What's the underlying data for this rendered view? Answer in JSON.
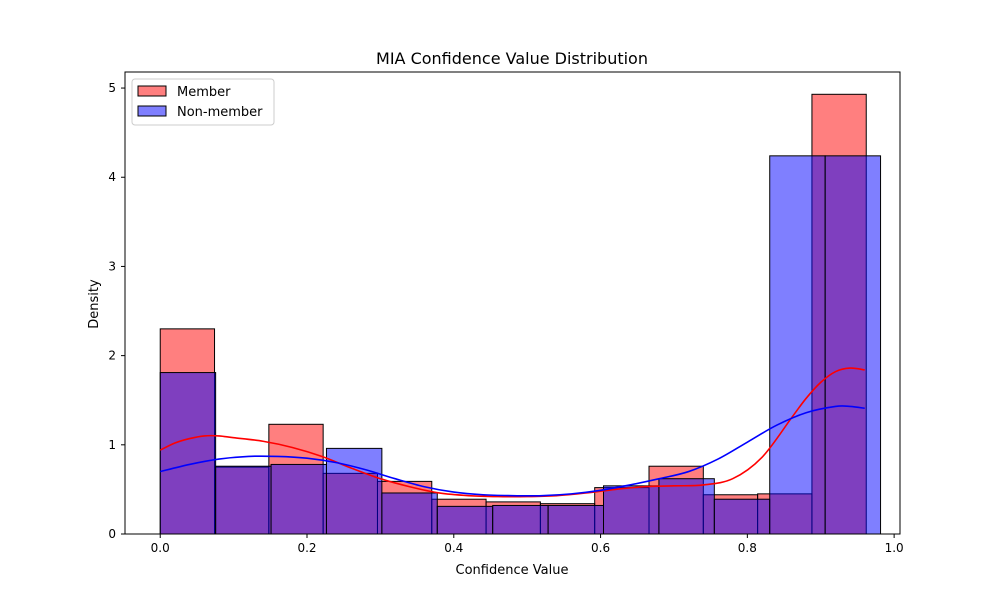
{
  "chart_data": {
    "type": "histogram",
    "title": "MIA Confidence Value Distribution",
    "xlabel": "Confidence Value",
    "ylabel": "Density",
    "xlim": [
      -0.048,
      1.008
    ],
    "ylim": [
      0,
      5.18
    ],
    "xticks": [
      0.0,
      0.2,
      0.4,
      0.6,
      0.8,
      1.0
    ],
    "xtick_labels": [
      "0.0",
      "0.2",
      "0.4",
      "0.6",
      "0.8",
      "1.0"
    ],
    "yticks": [
      0,
      1,
      2,
      3,
      4,
      5
    ],
    "ytick_labels": [
      "0",
      "1",
      "2",
      "3",
      "4",
      "5"
    ],
    "grid": false,
    "legend_position": "upper-left",
    "series": [
      {
        "name": "Member",
        "color": "#ff0000",
        "fill_alpha": 0.5,
        "bin_edges": [
          0.0,
          0.074,
          0.148,
          0.222,
          0.296,
          0.37,
          0.444,
          0.518,
          0.592,
          0.666,
          0.74,
          0.814,
          0.888,
          0.962
        ],
        "densities": [
          2.3,
          0.75,
          1.23,
          0.68,
          0.59,
          0.39,
          0.36,
          0.34,
          0.52,
          0.76,
          0.44,
          0.45,
          4.93
        ],
        "kde": {
          "x": [
            0.0,
            0.02,
            0.04,
            0.06,
            0.08,
            0.1,
            0.14,
            0.18,
            0.22,
            0.26,
            0.3,
            0.34,
            0.38,
            0.42,
            0.46,
            0.5,
            0.54,
            0.58,
            0.62,
            0.66,
            0.7,
            0.74,
            0.78,
            0.82,
            0.86,
            0.88,
            0.9,
            0.92,
            0.94,
            0.96
          ],
          "y": [
            0.94,
            1.02,
            1.07,
            1.1,
            1.1,
            1.08,
            1.04,
            0.97,
            0.87,
            0.74,
            0.62,
            0.53,
            0.46,
            0.43,
            0.42,
            0.42,
            0.43,
            0.46,
            0.5,
            0.53,
            0.54,
            0.55,
            0.62,
            0.86,
            1.3,
            1.52,
            1.7,
            1.82,
            1.86,
            1.84
          ]
        }
      },
      {
        "name": "Non-member",
        "color": "#0000ff",
        "fill_alpha": 0.5,
        "bin_edges": [
          0.0,
          0.0755,
          0.151,
          0.2265,
          0.302,
          0.3775,
          0.453,
          0.5285,
          0.604,
          0.6795,
          0.755,
          0.8305,
          0.906,
          0.9815
        ],
        "densities": [
          1.81,
          0.76,
          0.78,
          0.96,
          0.46,
          0.31,
          0.32,
          0.32,
          0.54,
          0.62,
          0.39,
          4.24,
          4.24
        ],
        "kde": {
          "x": [
            0.0,
            0.04,
            0.08,
            0.12,
            0.16,
            0.2,
            0.24,
            0.28,
            0.32,
            0.36,
            0.4,
            0.44,
            0.48,
            0.52,
            0.56,
            0.6,
            0.64,
            0.68,
            0.72,
            0.76,
            0.8,
            0.84,
            0.88,
            0.92,
            0.94,
            0.96
          ],
          "y": [
            0.7,
            0.78,
            0.84,
            0.87,
            0.87,
            0.85,
            0.8,
            0.72,
            0.62,
            0.53,
            0.47,
            0.44,
            0.43,
            0.43,
            0.45,
            0.49,
            0.55,
            0.62,
            0.7,
            0.84,
            1.03,
            1.22,
            1.36,
            1.43,
            1.43,
            1.41
          ]
        }
      }
    ]
  }
}
